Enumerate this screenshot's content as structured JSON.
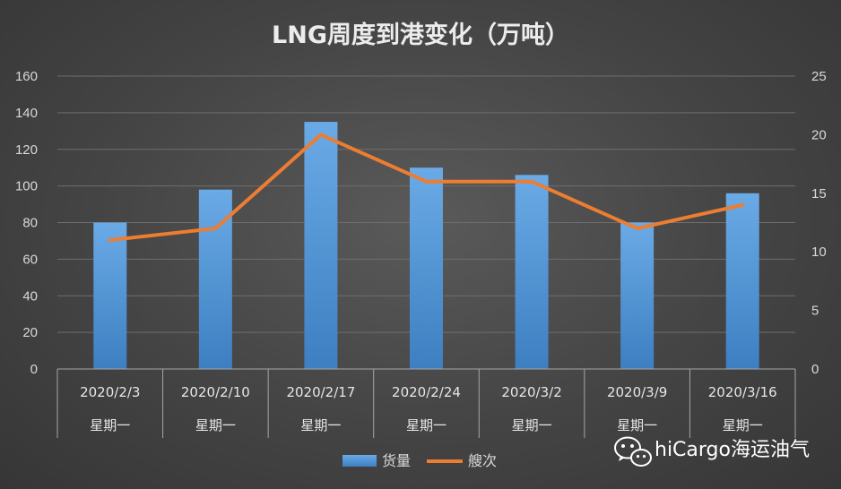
{
  "chart_data": {
    "type": "bar",
    "title": "LNG周度到港变化（万吨）",
    "categories": [
      "2020/2/3",
      "2020/2/10",
      "2020/2/17",
      "2020/2/24",
      "2020/3/2",
      "2020/3/9",
      "2020/3/16"
    ],
    "category_sublabel": "星期一",
    "series": [
      {
        "name": "货量",
        "type": "bar",
        "axis": "left",
        "values": [
          80,
          98,
          135,
          110,
          106,
          80,
          96
        ],
        "color": "#5b9bd5"
      },
      {
        "name": "艘次",
        "type": "line",
        "axis": "right",
        "values": [
          11,
          12,
          20,
          16,
          16,
          12,
          14
        ],
        "color": "#ed7d31"
      }
    ],
    "y_left": {
      "ylim": [
        0,
        160
      ],
      "ticks": [
        0,
        20,
        40,
        60,
        80,
        100,
        120,
        140,
        160
      ]
    },
    "y_right": {
      "ylim": [
        0,
        25
      ],
      "ticks": [
        0,
        5,
        10,
        15,
        20,
        25
      ]
    },
    "grid": true,
    "legend_position": "bottom"
  },
  "watermark": {
    "text": "hiCargo海运油气",
    "icon": "wechat-icon"
  }
}
